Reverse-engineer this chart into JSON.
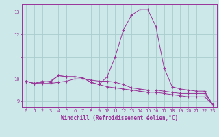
{
  "xlabel": "Windchill (Refroidissement éolien,°C)",
  "background_color": "#cce8e8",
  "grid_color": "#aacccc",
  "line_color": "#993399",
  "x": [
    0,
    1,
    2,
    3,
    4,
    5,
    6,
    7,
    8,
    9,
    10,
    11,
    12,
    13,
    14,
    15,
    16,
    17,
    18,
    19,
    20,
    21,
    22,
    23
  ],
  "line1": [
    9.9,
    9.8,
    9.8,
    9.8,
    9.85,
    9.9,
    10.0,
    10.0,
    9.95,
    9.9,
    9.9,
    9.85,
    9.75,
    9.6,
    9.55,
    9.5,
    9.5,
    9.45,
    9.4,
    9.35,
    9.35,
    9.35,
    9.35,
    8.85
  ],
  "line2": [
    9.9,
    9.8,
    9.9,
    9.85,
    10.15,
    10.1,
    10.1,
    10.05,
    9.85,
    9.75,
    9.65,
    9.6,
    9.55,
    9.5,
    9.45,
    9.4,
    9.4,
    9.35,
    9.3,
    9.25,
    9.2,
    9.2,
    9.2,
    8.85
  ],
  "line3": [
    9.9,
    9.8,
    9.85,
    9.9,
    10.15,
    10.1,
    10.1,
    10.05,
    9.85,
    9.75,
    10.1,
    11.0,
    12.2,
    12.85,
    13.1,
    13.1,
    12.35,
    10.5,
    9.65,
    9.55,
    9.5,
    9.45,
    9.45,
    8.85
  ],
  "xlim": [
    -0.5,
    23.5
  ],
  "ylim": [
    8.75,
    13.35
  ],
  "yticks": [
    9,
    10,
    11,
    12,
    13
  ],
  "xticks": [
    0,
    1,
    2,
    3,
    4,
    5,
    6,
    7,
    8,
    9,
    10,
    11,
    12,
    13,
    14,
    15,
    16,
    17,
    18,
    19,
    20,
    21,
    22,
    23
  ],
  "tick_fontsize": 5.0,
  "xlabel_fontsize": 5.5
}
